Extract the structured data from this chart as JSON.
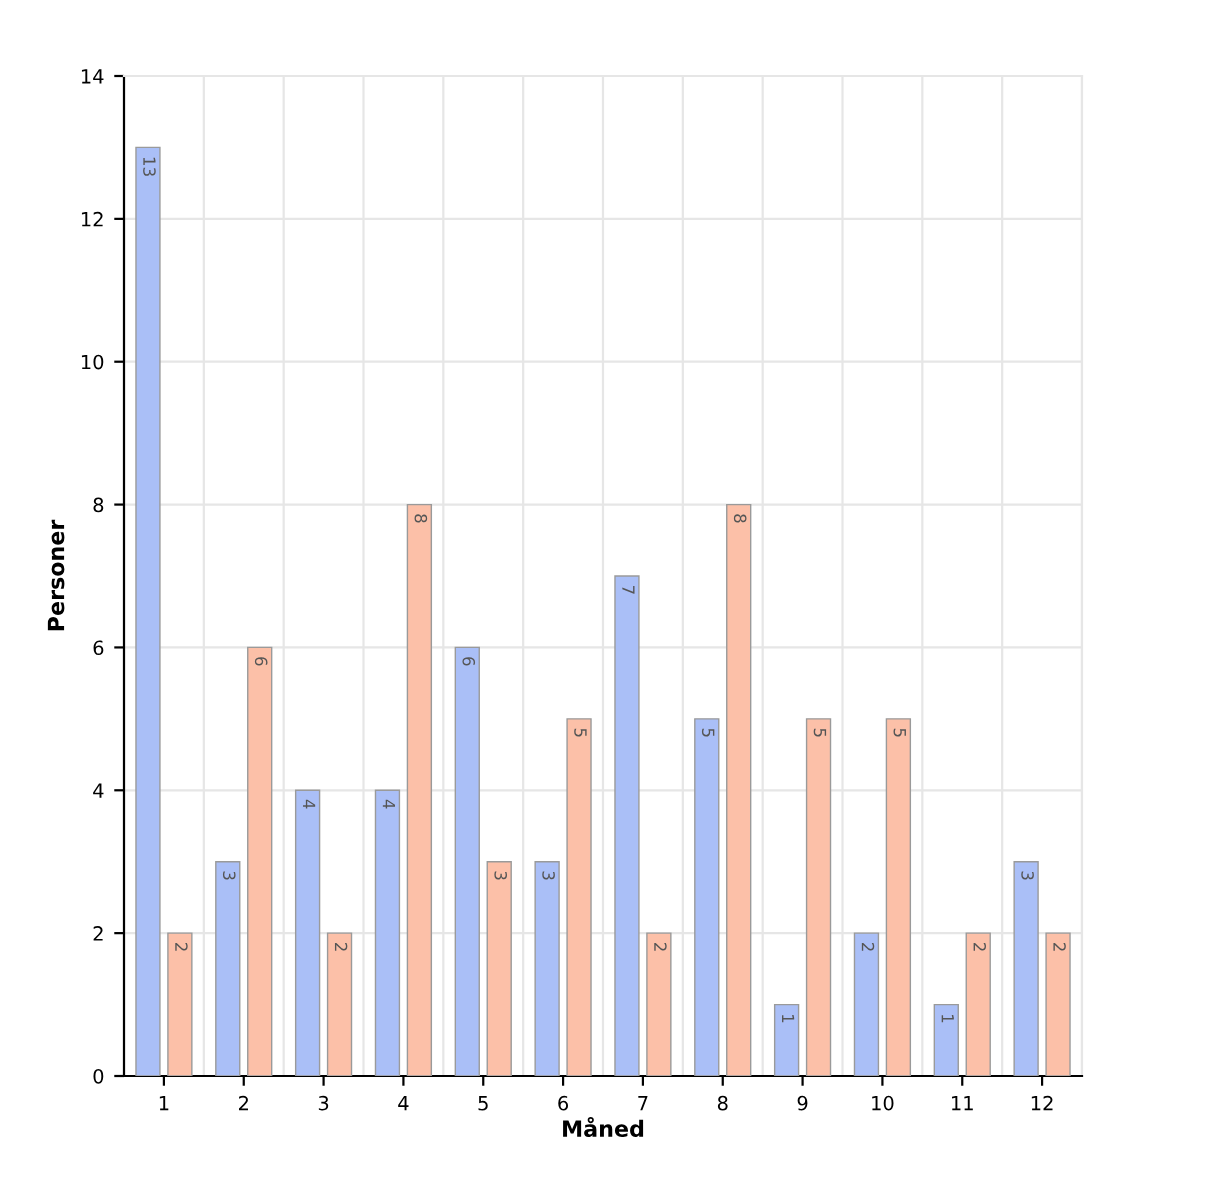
{
  "chart_data": {
    "type": "bar",
    "xlabel": "Måned",
    "ylabel": "Personer",
    "categories": [
      "1",
      "2",
      "3",
      "4",
      "5",
      "6",
      "7",
      "8",
      "9",
      "10",
      "11",
      "12"
    ],
    "series": [
      {
        "color": "#aabff7",
        "values": [
          13,
          3,
          4,
          4,
          6,
          3,
          7,
          5,
          1,
          2,
          1,
          3
        ]
      },
      {
        "color": "#fcc0a8",
        "values": [
          2,
          6,
          2,
          8,
          3,
          5,
          2,
          8,
          5,
          5,
          2,
          2
        ]
      }
    ],
    "ylim": [
      0,
      14
    ],
    "yticks": [
      0,
      2,
      4,
      6,
      8,
      10,
      12,
      14
    ],
    "grid": "y",
    "data_labels": true
  }
}
